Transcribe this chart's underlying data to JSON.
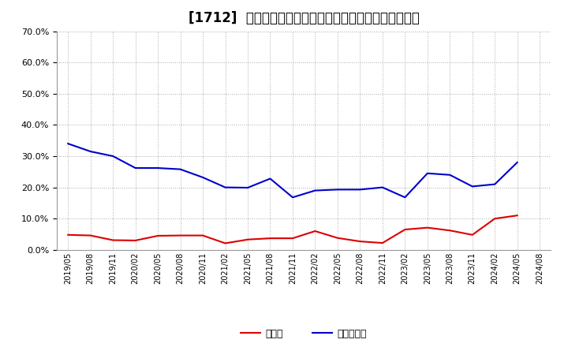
{
  "title": "[1712]  現預金、有利子負債の総資産に対する比率の推移",
  "x_labels": [
    "2019/05",
    "2019/08",
    "2019/11",
    "2020/02",
    "2020/05",
    "2020/08",
    "2020/11",
    "2021/02",
    "2021/05",
    "2021/08",
    "2021/11",
    "2022/02",
    "2022/05",
    "2022/08",
    "2022/11",
    "2023/02",
    "2023/05",
    "2023/08",
    "2023/11",
    "2024/02",
    "2024/05",
    "2024/08"
  ],
  "cash": [
    0.048,
    0.046,
    0.031,
    0.03,
    0.045,
    0.046,
    0.046,
    0.021,
    0.033,
    0.037,
    0.037,
    0.06,
    0.038,
    0.027,
    0.022,
    0.065,
    0.071,
    0.062,
    0.048,
    0.1,
    0.11,
    null
  ],
  "debt": [
    0.34,
    0.315,
    0.3,
    0.262,
    0.262,
    0.258,
    0.232,
    0.2,
    0.199,
    0.228,
    0.168,
    0.19,
    0.193,
    0.193,
    0.2,
    0.168,
    0.245,
    0.24,
    0.203,
    0.21,
    0.28,
    null
  ],
  "cash_color": "#dd0000",
  "debt_color": "#0000cc",
  "legend_cash": "現預金",
  "legend_debt": "有利子負債",
  "ylim": [
    0.0,
    0.7
  ],
  "yticks": [
    0.0,
    0.1,
    0.2,
    0.3,
    0.4,
    0.5,
    0.6,
    0.7
  ],
  "background_color": "#ffffff",
  "grid_color": "#aaaaaa",
  "title_fontsize": 12
}
